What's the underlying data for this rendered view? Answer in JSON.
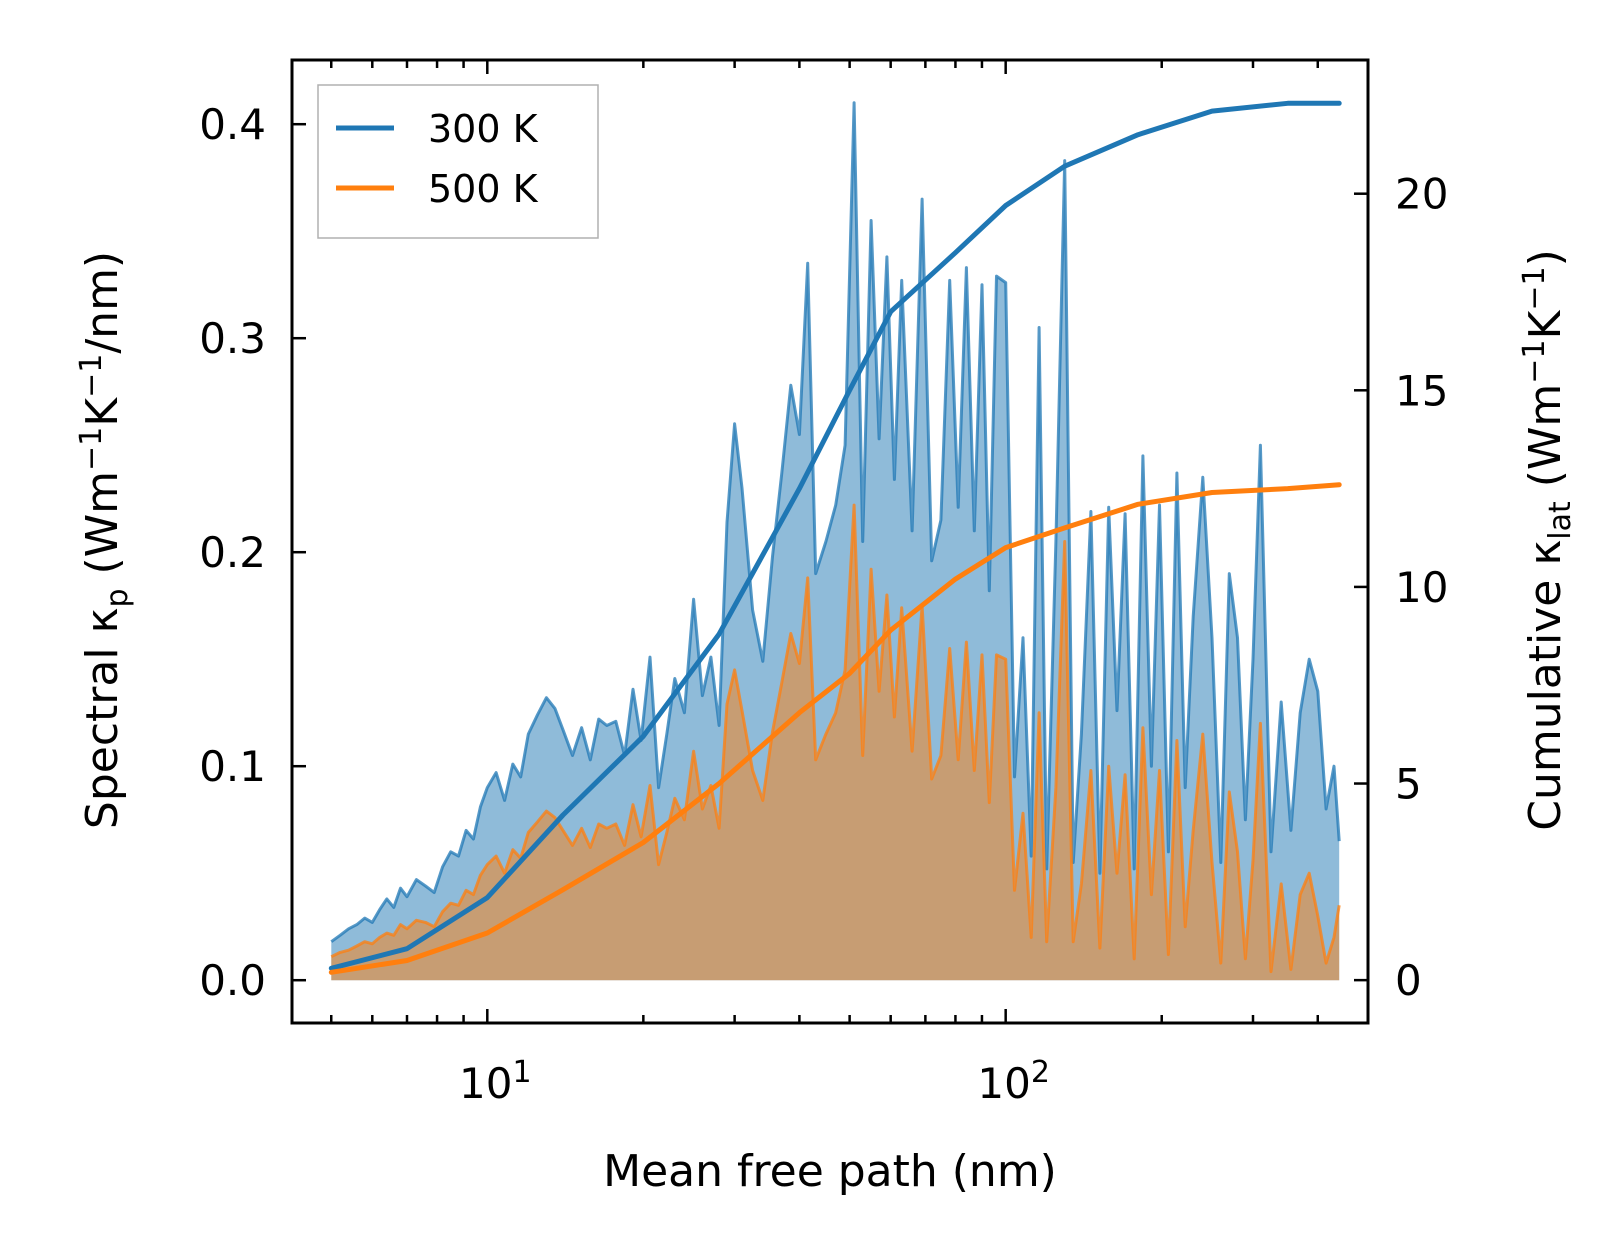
{
  "chart_data": {
    "type": "line",
    "title": "",
    "xlabel": "Mean free path (nm)",
    "xscale": "log",
    "xlim": [
      4.2,
      500
    ],
    "x_ticks": [
      {
        "value": 10,
        "base": "10",
        "exp": "1"
      },
      {
        "value": 100,
        "base": "10",
        "exp": "2"
      }
    ],
    "ylabel_left": {
      "prefix": "Spectral κ",
      "sub": "p",
      "mid1": " (Wm",
      "sup1": "−1",
      "mid2": "K",
      "sup2": "−1",
      "suffix": "/nm)"
    },
    "ylim_left": [
      -0.02,
      0.43
    ],
    "yticks_left": [
      "0.0",
      "0.1",
      "0.2",
      "0.3",
      "0.4"
    ],
    "ylabel_right": {
      "prefix": "Cumulative κ",
      "sub": "lat",
      "mid1": " (Wm",
      "sup1": "−1",
      "mid2": "K",
      "sup2": "−1",
      "suffix": ")"
    },
    "ylim_right": [
      -1.09,
      23.4
    ],
    "yticks_right": [
      "0",
      "5",
      "10",
      "15",
      "20"
    ],
    "legend": {
      "position": "top-left",
      "entries": [
        "300 K",
        "500 K"
      ]
    },
    "colors": {
      "300 K": "#1f77b4",
      "500 K": "#ff7f0e"
    },
    "x": [
      5,
      5.2,
      5.4,
      5.6,
      5.8,
      6,
      6.2,
      6.4,
      6.6,
      6.8,
      7,
      7.3,
      7.6,
      7.9,
      8.2,
      8.5,
      8.8,
      9.1,
      9.4,
      9.7,
      10,
      10.4,
      10.8,
      11.2,
      11.6,
      12,
      12.5,
      13,
      13.5,
      14,
      14.6,
      15.2,
      15.8,
      16.4,
      17,
      17.7,
      18.4,
      19.1,
      19.8,
      20.6,
      21.4,
      22.2,
      23,
      24,
      25,
      26,
      27,
      28,
      29,
      30,
      31,
      32.5,
      34,
      35.5,
      37,
      38.5,
      40,
      41.5,
      43,
      45,
      47,
      49,
      51,
      53,
      55,
      57,
      59,
      61,
      63,
      66,
      69,
      72,
      75,
      78,
      81,
      84,
      87,
      90,
      93,
      96,
      100,
      104,
      108,
      112,
      116,
      120,
      125,
      130,
      135,
      140,
      146,
      152,
      158,
      164,
      170,
      177,
      184,
      191,
      198,
      206,
      214,
      222,
      230,
      240,
      250,
      260,
      270,
      280,
      290,
      300,
      310,
      325,
      340,
      355,
      370,
      385,
      400,
      415,
      430,
      440
    ],
    "series": [
      {
        "name": "300 K",
        "spectral": [
          0.018,
          0.021,
          0.024,
          0.026,
          0.029,
          0.027,
          0.033,
          0.038,
          0.034,
          0.043,
          0.039,
          0.047,
          0.044,
          0.041,
          0.053,
          0.06,
          0.058,
          0.07,
          0.066,
          0.081,
          0.09,
          0.097,
          0.084,
          0.101,
          0.095,
          0.115,
          0.124,
          0.132,
          0.127,
          0.117,
          0.105,
          0.118,
          0.103,
          0.122,
          0.119,
          0.121,
          0.105,
          0.136,
          0.112,
          0.151,
          0.09,
          0.115,
          0.141,
          0.125,
          0.178,
          0.133,
          0.151,
          0.119,
          0.214,
          0.26,
          0.23,
          0.173,
          0.149,
          0.198,
          0.237,
          0.278,
          0.255,
          0.335,
          0.19,
          0.205,
          0.222,
          0.25,
          0.41,
          0.205,
          0.355,
          0.253,
          0.338,
          0.234,
          0.327,
          0.21,
          0.365,
          0.196,
          0.215,
          0.327,
          0.221,
          0.333,
          0.21,
          0.325,
          0.182,
          0.329,
          0.326,
          0.095,
          0.16,
          0.058,
          0.305,
          0.052,
          0.205,
          0.383,
          0.055,
          0.115,
          0.219,
          0.05,
          0.221,
          0.126,
          0.218,
          0.052,
          0.245,
          0.1,
          0.222,
          0.06,
          0.237,
          0.09,
          0.17,
          0.235,
          0.16,
          0.055,
          0.19,
          0.16,
          0.075,
          0.15,
          0.25,
          0.06,
          0.13,
          0.07,
          0.125,
          0.15,
          0.135,
          0.08,
          0.1,
          0.065
        ]
      },
      {
        "name": "500 K",
        "spectral": [
          0.011,
          0.013,
          0.014,
          0.016,
          0.018,
          0.017,
          0.02,
          0.022,
          0.021,
          0.026,
          0.024,
          0.028,
          0.027,
          0.025,
          0.032,
          0.036,
          0.035,
          0.042,
          0.04,
          0.049,
          0.054,
          0.058,
          0.05,
          0.061,
          0.057,
          0.069,
          0.074,
          0.079,
          0.076,
          0.07,
          0.063,
          0.071,
          0.062,
          0.073,
          0.071,
          0.073,
          0.063,
          0.082,
          0.067,
          0.091,
          0.054,
          0.069,
          0.085,
          0.075,
          0.107,
          0.08,
          0.091,
          0.071,
          0.129,
          0.145,
          0.126,
          0.098,
          0.084,
          0.116,
          0.139,
          0.162,
          0.148,
          0.188,
          0.103,
          0.115,
          0.125,
          0.145,
          0.222,
          0.105,
          0.192,
          0.135,
          0.18,
          0.123,
          0.174,
          0.107,
          0.175,
          0.094,
          0.105,
          0.155,
          0.103,
          0.158,
          0.098,
          0.152,
          0.083,
          0.152,
          0.15,
          0.042,
          0.078,
          0.02,
          0.125,
          0.018,
          0.09,
          0.205,
          0.018,
          0.045,
          0.098,
          0.015,
          0.1,
          0.05,
          0.096,
          0.01,
          0.118,
          0.04,
          0.098,
          0.012,
          0.112,
          0.025,
          0.07,
          0.115,
          0.055,
          0.008,
          0.088,
          0.06,
          0.01,
          0.056,
          0.12,
          0.004,
          0.045,
          0.005,
          0.04,
          0.05,
          0.03,
          0.008,
          0.02,
          0.035
        ]
      }
    ],
    "cumulative": [
      {
        "name": "300 K",
        "x": [
          5,
          7,
          10,
          14,
          20,
          28,
          40,
          50,
          60,
          80,
          100,
          130,
          180,
          250,
          350,
          440
        ],
        "values": [
          0.3,
          0.8,
          2.1,
          4.2,
          6.2,
          8.8,
          12.5,
          15.0,
          17.0,
          18.5,
          19.7,
          20.7,
          21.5,
          22.1,
          22.3,
          22.3
        ]
      },
      {
        "name": "500 K",
        "x": [
          5,
          7,
          10,
          14,
          20,
          28,
          40,
          50,
          60,
          80,
          100,
          130,
          180,
          250,
          350,
          440
        ],
        "values": [
          0.2,
          0.5,
          1.2,
          2.3,
          3.5,
          5.0,
          6.8,
          7.8,
          8.9,
          10.2,
          11.0,
          11.5,
          12.1,
          12.4,
          12.5,
          12.6
        ]
      }
    ]
  }
}
